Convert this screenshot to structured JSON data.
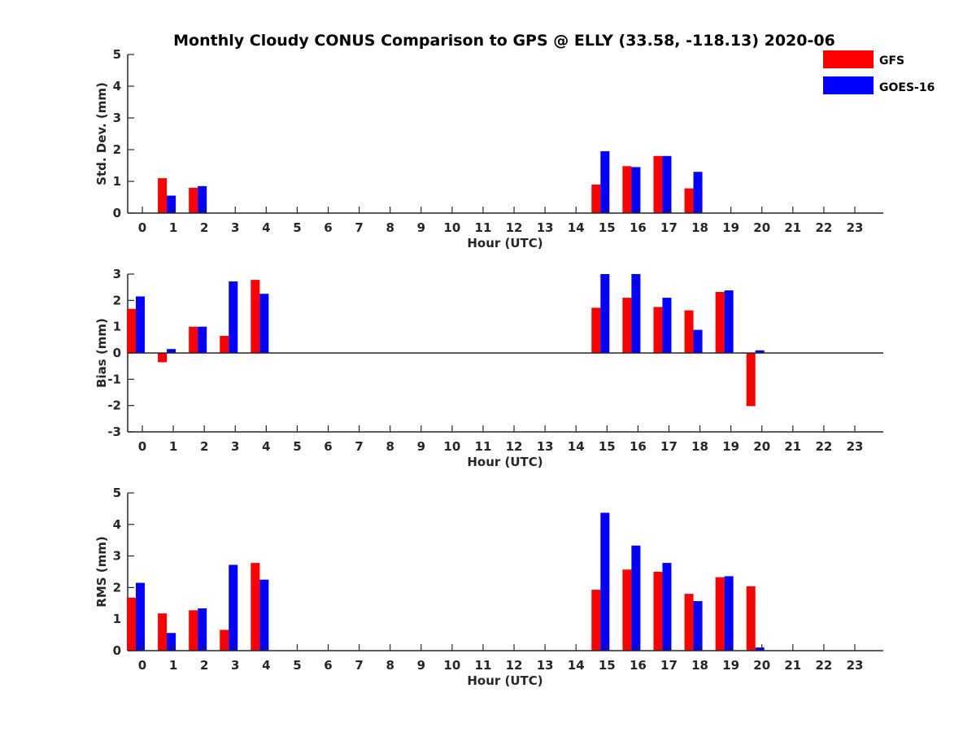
{
  "chart_data": {
    "type": "bar",
    "title": "Monthly Cloudy CONUS Comparison to GPS @ ELLY (33.58, -118.13) 2020-06",
    "legend": {
      "placement": "top-right",
      "entries": [
        {
          "name": "GFS",
          "color": "#ff0000"
        },
        {
          "name": "GOES-16",
          "color": "#0000ff"
        }
      ]
    },
    "categories": [
      "0",
      "1",
      "2",
      "3",
      "4",
      "5",
      "6",
      "7",
      "8",
      "9",
      "10",
      "11",
      "12",
      "13",
      "14",
      "15",
      "16",
      "17",
      "18",
      "19",
      "20",
      "21",
      "22",
      "23"
    ],
    "panels": [
      {
        "ylabel": "Std. Dev. (mm)",
        "xlabel": "Hour (UTC)",
        "ylim": [
          0,
          5
        ],
        "yticks": [
          "0",
          "1",
          "2",
          "3",
          "4",
          "5"
        ],
        "series": [
          {
            "name": "GFS",
            "color": "#ff0000",
            "values": [
              null,
              1.1,
              0.8,
              null,
              null,
              null,
              null,
              null,
              null,
              null,
              null,
              null,
              null,
              null,
              null,
              0.9,
              1.48,
              1.8,
              0.78,
              null,
              null,
              null,
              null,
              null
            ]
          },
          {
            "name": "GOES-16",
            "color": "#0000ff",
            "values": [
              null,
              0.55,
              0.85,
              null,
              null,
              null,
              null,
              null,
              null,
              null,
              null,
              null,
              null,
              null,
              null,
              1.95,
              1.45,
              1.8,
              1.3,
              null,
              null,
              null,
              null,
              null
            ]
          }
        ]
      },
      {
        "ylabel": "Bias (mm)",
        "xlabel": "Hour (UTC)",
        "ylim": [
          -3,
          3
        ],
        "yticks": [
          "-3",
          "-2",
          "-1",
          "0",
          "1",
          "2",
          "3"
        ],
        "series": [
          {
            "name": "GFS",
            "color": "#ff0000",
            "values": [
              1.68,
              -0.35,
              1.0,
              0.65,
              2.78,
              null,
              null,
              null,
              null,
              null,
              null,
              null,
              null,
              null,
              null,
              1.72,
              2.1,
              1.75,
              1.62,
              2.32,
              -2.02,
              null,
              null,
              null
            ]
          },
          {
            "name": "GOES-16",
            "color": "#0000ff",
            "values": [
              2.15,
              0.15,
              1.0,
              2.72,
              2.25,
              null,
              null,
              null,
              null,
              null,
              null,
              null,
              null,
              null,
              null,
              3.0,
              3.0,
              2.1,
              0.88,
              2.38,
              0.1,
              null,
              null,
              null
            ]
          }
        ]
      },
      {
        "ylabel": "RMS (mm)",
        "xlabel": "Hour (UTC)",
        "ylim": [
          0,
          5
        ],
        "yticks": [
          "0",
          "1",
          "2",
          "3",
          "4",
          "5"
        ],
        "series": [
          {
            "name": "GFS",
            "color": "#ff0000",
            "values": [
              1.68,
              1.18,
              1.28,
              0.66,
              2.78,
              null,
              null,
              null,
              null,
              null,
              null,
              null,
              null,
              null,
              null,
              1.93,
              2.57,
              2.5,
              1.8,
              2.33,
              2.04,
              null,
              null,
              null
            ]
          },
          {
            "name": "GOES-16",
            "color": "#0000ff",
            "values": [
              2.15,
              0.56,
              1.34,
              2.72,
              2.25,
              null,
              null,
              null,
              null,
              null,
              null,
              null,
              null,
              null,
              null,
              4.37,
              3.33,
              2.78,
              1.57,
              2.36,
              0.1,
              null,
              null,
              null
            ]
          }
        ]
      }
    ]
  }
}
